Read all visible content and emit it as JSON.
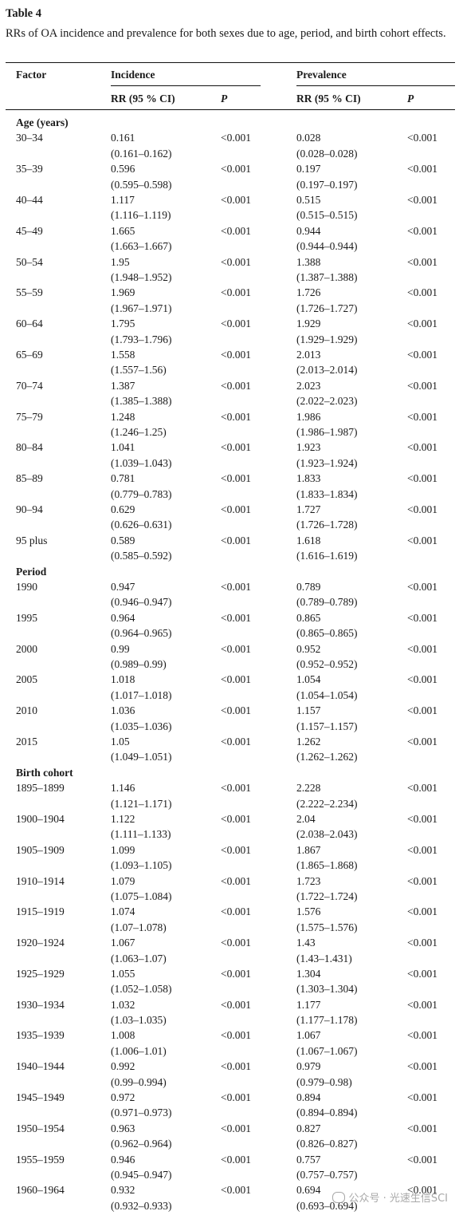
{
  "table": {
    "number": "Table 4",
    "caption": "RRs of OA incidence and prevalence for both sexes due to age, period, and birth cohort effects."
  },
  "header": {
    "factor": "Factor",
    "incidence": "Incidence",
    "prevalence": "Prevalence",
    "rr": "RR (95 % CI)",
    "p": "P"
  },
  "sections": [
    {
      "title": "Age (years)",
      "rows": [
        {
          "factor": "30–34",
          "inc_rr": "0.161",
          "inc_ci": "(0.161–0.162)",
          "inc_p": "<0.001",
          "prev_rr": "0.028",
          "prev_ci": "(0.028–0.028)",
          "prev_p": "<0.001"
        },
        {
          "factor": "35–39",
          "inc_rr": "0.596",
          "inc_ci": "(0.595–0.598)",
          "inc_p": "<0.001",
          "prev_rr": "0.197",
          "prev_ci": "(0.197–0.197)",
          "prev_p": "<0.001"
        },
        {
          "factor": "40–44",
          "inc_rr": "1.117",
          "inc_ci": "(1.116–1.119)",
          "inc_p": "<0.001",
          "prev_rr": "0.515",
          "prev_ci": "(0.515–0.515)",
          "prev_p": "<0.001"
        },
        {
          "factor": "45–49",
          "inc_rr": "1.665",
          "inc_ci": "(1.663–1.667)",
          "inc_p": "<0.001",
          "prev_rr": "0.944",
          "prev_ci": "(0.944–0.944)",
          "prev_p": "<0.001"
        },
        {
          "factor": "50–54",
          "inc_rr": "1.95",
          "inc_ci": "(1.948–1.952)",
          "inc_p": "<0.001",
          "prev_rr": "1.388",
          "prev_ci": "(1.387–1.388)",
          "prev_p": "<0.001"
        },
        {
          "factor": "55–59",
          "inc_rr": "1.969",
          "inc_ci": "(1.967–1.971)",
          "inc_p": "<0.001",
          "prev_rr": "1.726",
          "prev_ci": "(1.726–1.727)",
          "prev_p": "<0.001"
        },
        {
          "factor": "60–64",
          "inc_rr": "1.795",
          "inc_ci": "(1.793–1.796)",
          "inc_p": "<0.001",
          "prev_rr": "1.929",
          "prev_ci": "(1.929–1.929)",
          "prev_p": "<0.001"
        },
        {
          "factor": "65–69",
          "inc_rr": "1.558",
          "inc_ci": "(1.557–1.56)",
          "inc_p": "<0.001",
          "prev_rr": "2.013",
          "prev_ci": "(2.013–2.014)",
          "prev_p": "<0.001"
        },
        {
          "factor": "70–74",
          "inc_rr": "1.387",
          "inc_ci": "(1.385–1.388)",
          "inc_p": "<0.001",
          "prev_rr": "2.023",
          "prev_ci": "(2.022–2.023)",
          "prev_p": "<0.001"
        },
        {
          "factor": "75–79",
          "inc_rr": "1.248",
          "inc_ci": "(1.246–1.25)",
          "inc_p": "<0.001",
          "prev_rr": "1.986",
          "prev_ci": "(1.986–1.987)",
          "prev_p": "<0.001"
        },
        {
          "factor": "80–84",
          "inc_rr": "1.041",
          "inc_ci": "(1.039–1.043)",
          "inc_p": "<0.001",
          "prev_rr": "1.923",
          "prev_ci": "(1.923–1.924)",
          "prev_p": "<0.001"
        },
        {
          "factor": "85–89",
          "inc_rr": "0.781",
          "inc_ci": "(0.779–0.783)",
          "inc_p": "<0.001",
          "prev_rr": "1.833",
          "prev_ci": "(1.833–1.834)",
          "prev_p": "<0.001"
        },
        {
          "factor": "90–94",
          "inc_rr": "0.629",
          "inc_ci": "(0.626–0.631)",
          "inc_p": "<0.001",
          "prev_rr": "1.727",
          "prev_ci": "(1.726–1.728)",
          "prev_p": "<0.001"
        },
        {
          "factor": "95 plus",
          "inc_rr": "0.589",
          "inc_ci": "(0.585–0.592)",
          "inc_p": "<0.001",
          "prev_rr": "1.618",
          "prev_ci": "(1.616–1.619)",
          "prev_p": "<0.001"
        }
      ]
    },
    {
      "title": "Period",
      "rows": [
        {
          "factor": "1990",
          "inc_rr": "0.947",
          "inc_ci": "(0.946–0.947)",
          "inc_p": "<0.001",
          "prev_rr": "0.789",
          "prev_ci": "(0.789–0.789)",
          "prev_p": "<0.001"
        },
        {
          "factor": "1995",
          "inc_rr": "0.964",
          "inc_ci": "(0.964–0.965)",
          "inc_p": "<0.001",
          "prev_rr": "0.865",
          "prev_ci": "(0.865–0.865)",
          "prev_p": "<0.001"
        },
        {
          "factor": "2000",
          "inc_rr": "0.99",
          "inc_ci": "(0.989–0.99)",
          "inc_p": "<0.001",
          "prev_rr": "0.952",
          "prev_ci": "(0.952–0.952)",
          "prev_p": "<0.001"
        },
        {
          "factor": "2005",
          "inc_rr": "1.018",
          "inc_ci": "(1.017–1.018)",
          "inc_p": "<0.001",
          "prev_rr": "1.054",
          "prev_ci": "(1.054–1.054)",
          "prev_p": "<0.001"
        },
        {
          "factor": "2010",
          "inc_rr": "1.036",
          "inc_ci": "(1.035–1.036)",
          "inc_p": "<0.001",
          "prev_rr": "1.157",
          "prev_ci": "(1.157–1.157)",
          "prev_p": "<0.001"
        },
        {
          "factor": "2015",
          "inc_rr": "1.05",
          "inc_ci": "(1.049–1.051)",
          "inc_p": "<0.001",
          "prev_rr": "1.262",
          "prev_ci": "(1.262–1.262)",
          "prev_p": "<0.001"
        }
      ]
    },
    {
      "title": "Birth cohort",
      "rows": [
        {
          "factor": "1895–1899",
          "inc_rr": "1.146",
          "inc_ci": "(1.121–1.171)",
          "inc_p": "<0.001",
          "prev_rr": "2.228",
          "prev_ci": "(2.222–2.234)",
          "prev_p": "<0.001"
        },
        {
          "factor": "1900–1904",
          "inc_rr": "1.122",
          "inc_ci": "(1.111–1.133)",
          "inc_p": "<0.001",
          "prev_rr": "2.04",
          "prev_ci": "(2.038–2.043)",
          "prev_p": "<0.001"
        },
        {
          "factor": "1905–1909",
          "inc_rr": "1.099",
          "inc_ci": "(1.093–1.105)",
          "inc_p": "<0.001",
          "prev_rr": "1.867",
          "prev_ci": "(1.865–1.868)",
          "prev_p": "<0.001"
        },
        {
          "factor": "1910–1914",
          "inc_rr": "1.079",
          "inc_ci": "(1.075–1.084)",
          "inc_p": "<0.001",
          "prev_rr": "1.723",
          "prev_ci": "(1.722–1.724)",
          "prev_p": "<0.001"
        },
        {
          "factor": "1915–1919",
          "inc_rr": "1.074",
          "inc_ci": "(1.07–1.078)",
          "inc_p": "<0.001",
          "prev_rr": "1.576",
          "prev_ci": "(1.575–1.576)",
          "prev_p": "<0.001"
        },
        {
          "factor": "1920–1924",
          "inc_rr": "1.067",
          "inc_ci": "(1.063–1.07)",
          "inc_p": "<0.001",
          "prev_rr": "1.43",
          "prev_ci": "(1.43–1.431)",
          "prev_p": "<0.001"
        },
        {
          "factor": "1925–1929",
          "inc_rr": "1.055",
          "inc_ci": "(1.052–1.058)",
          "inc_p": "<0.001",
          "prev_rr": "1.304",
          "prev_ci": "(1.303–1.304)",
          "prev_p": "<0.001"
        },
        {
          "factor": "1930–1934",
          "inc_rr": "1.032",
          "inc_ci": "(1.03–1.035)",
          "inc_p": "<0.001",
          "prev_rr": "1.177",
          "prev_ci": "(1.177–1.178)",
          "prev_p": "<0.001"
        },
        {
          "factor": "1935–1939",
          "inc_rr": "1.008",
          "inc_ci": "(1.006–1.01)",
          "inc_p": "<0.001",
          "prev_rr": "1.067",
          "prev_ci": "(1.067–1.067)",
          "prev_p": "<0.001"
        },
        {
          "factor": "1940–1944",
          "inc_rr": "0.992",
          "inc_ci": "(0.99–0.994)",
          "inc_p": "<0.001",
          "prev_rr": "0.979",
          "prev_ci": "(0.979–0.98)",
          "prev_p": "<0.001"
        },
        {
          "factor": "1945–1949",
          "inc_rr": "0.972",
          "inc_ci": "(0.971–0.973)",
          "inc_p": "<0.001",
          "prev_rr": "0.894",
          "prev_ci": "(0.894–0.894)",
          "prev_p": "<0.001"
        },
        {
          "factor": "1950–1954",
          "inc_rr": "0.963",
          "inc_ci": "(0.962–0.964)",
          "inc_p": "<0.001",
          "prev_rr": "0.827",
          "prev_ci": "(0.826–0.827)",
          "prev_p": "<0.001"
        },
        {
          "factor": "1955–1959",
          "inc_rr": "0.946",
          "inc_ci": "(0.945–0.947)",
          "inc_p": "<0.001",
          "prev_rr": "0.757",
          "prev_ci": "(0.757–0.757)",
          "prev_p": "<0.001"
        },
        {
          "factor": "1960–1964",
          "inc_rr": "0.932",
          "inc_ci": "(0.932–0.933)",
          "inc_p": "<0.001",
          "prev_rr": "0.694",
          "prev_ci": "(0.693–0.694)",
          "prev_p": "<0.001"
        }
      ]
    }
  ],
  "watermark": "公众号 · 光速生信SCI"
}
